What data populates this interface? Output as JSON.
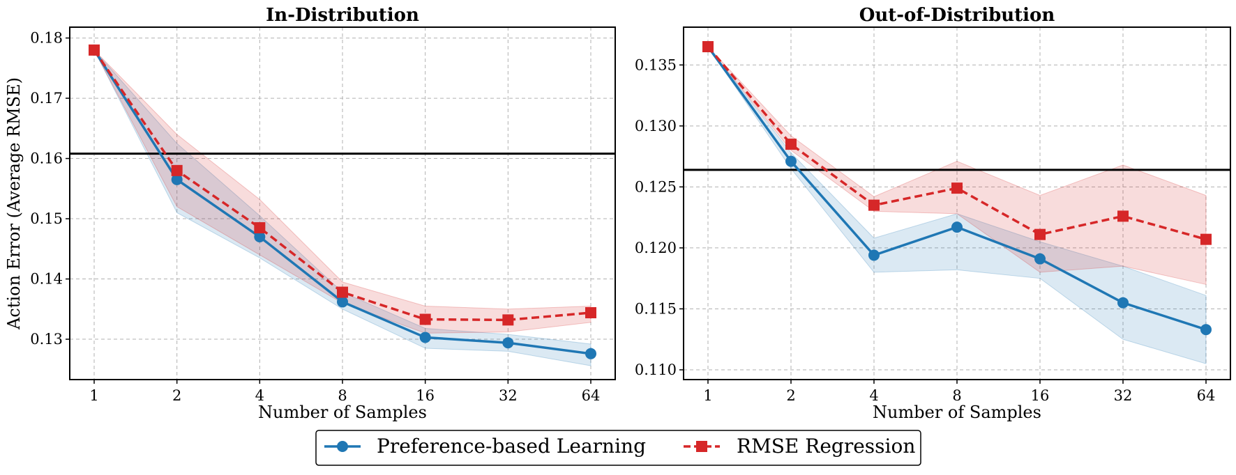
{
  "chart_data": [
    {
      "type": "line",
      "title": "In-Distribution",
      "xlabel": "Number of Samples",
      "ylabel": "Action Error (Average RMSE)",
      "x_scale": "log2",
      "x": [
        1,
        2,
        4,
        8,
        16,
        32,
        64
      ],
      "xticks": [
        "1",
        "2",
        "4",
        "8",
        "16",
        "32",
        "64"
      ],
      "ylim": [
        0.1233,
        0.1818
      ],
      "yticks": [
        0.13,
        0.14,
        0.15,
        0.16,
        0.17,
        0.18
      ],
      "ytick_labels": [
        "0.13",
        "0.14",
        "0.15",
        "0.16",
        "0.17",
        "0.18"
      ],
      "grid": true,
      "baseline": 0.1608,
      "series": [
        {
          "name": "Preference-based Learning",
          "color": "#1f77b4",
          "style": "solid",
          "marker": "circle",
          "values": [
            0.178,
            0.1565,
            0.147,
            0.1362,
            0.1303,
            0.1294,
            0.1276
          ],
          "lower": [
            0.178,
            0.151,
            0.1435,
            0.135,
            0.1285,
            0.128,
            0.1256
          ],
          "upper": [
            0.178,
            0.1625,
            0.1505,
            0.1378,
            0.1318,
            0.1308,
            0.1292
          ]
        },
        {
          "name": "RMSE Regression",
          "color": "#d62728",
          "style": "dashed",
          "marker": "square",
          "values": [
            0.178,
            0.158,
            0.1485,
            0.1378,
            0.1333,
            0.1332,
            0.1344
          ],
          "lower": [
            0.178,
            0.152,
            0.144,
            0.136,
            0.131,
            0.1312,
            0.1328
          ],
          "upper": [
            0.178,
            0.164,
            0.1532,
            0.1395,
            0.1355,
            0.135,
            0.1355
          ]
        }
      ]
    },
    {
      "type": "line",
      "title": "Out-of-Distribution",
      "xlabel": "Number of Samples",
      "ylabel": "",
      "x_scale": "log2",
      "x": [
        1,
        2,
        4,
        8,
        16,
        32,
        64
      ],
      "xticks": [
        "1",
        "2",
        "4",
        "8",
        "16",
        "32",
        "64"
      ],
      "ylim": [
        0.1092,
        0.1381
      ],
      "yticks": [
        0.11,
        0.115,
        0.12,
        0.125,
        0.13,
        0.135
      ],
      "ytick_labels": [
        "0.110",
        "0.115",
        "0.120",
        "0.125",
        "0.130",
        "0.135"
      ],
      "grid": true,
      "baseline": 0.1264,
      "series": [
        {
          "name": "Preference-based Learning",
          "color": "#1f77b4",
          "style": "solid",
          "marker": "circle",
          "values": [
            0.1365,
            0.1271,
            0.1194,
            0.1217,
            0.1191,
            0.1155,
            0.1133
          ],
          "lower": [
            0.1365,
            0.1265,
            0.118,
            0.1182,
            0.1175,
            0.1125,
            0.1105
          ],
          "upper": [
            0.1365,
            0.1278,
            0.1208,
            0.1228,
            0.1205,
            0.1185,
            0.1161
          ]
        },
        {
          "name": "RMSE Regression",
          "color": "#d62728",
          "style": "dashed",
          "marker": "square",
          "values": [
            0.1365,
            0.1285,
            0.1235,
            0.1249,
            0.1211,
            0.1226,
            0.1207
          ],
          "lower": [
            0.1365,
            0.128,
            0.123,
            0.1228,
            0.118,
            0.1185,
            0.117
          ],
          "upper": [
            0.1365,
            0.1292,
            0.1242,
            0.1271,
            0.1243,
            0.1268,
            0.1243
          ]
        }
      ]
    }
  ],
  "legend": {
    "placement": "bottom-center",
    "items": [
      "Preference-based Learning",
      "RMSE Regression"
    ]
  }
}
